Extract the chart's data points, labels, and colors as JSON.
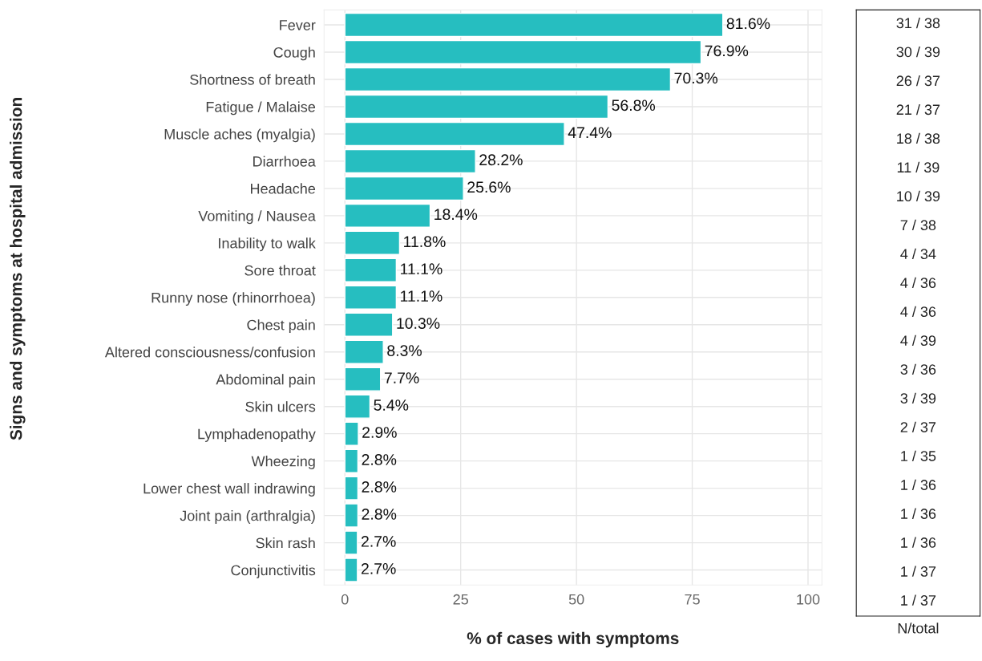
{
  "chart_data": {
    "type": "bar",
    "orientation": "horizontal",
    "xlabel": "% of cases with symptoms",
    "ylabel": "Signs and symptoms at hospital admission",
    "categories": [
      "Fever",
      "Cough",
      "Shortness of breath",
      "Fatigue / Malaise",
      "Muscle aches (myalgia)",
      "Diarrhoea",
      "Headache",
      "Vomiting / Nausea",
      "Inability to walk",
      "Sore throat",
      "Runny nose (rhinorrhoea)",
      "Chest pain",
      "Altered consciousness/confusion",
      "Abdominal pain",
      "Skin ulcers",
      "Lymphadenopathy",
      "Wheezing",
      "Lower chest wall indrawing",
      "Joint pain (arthralgia)",
      "Skin rash",
      "Conjunctivitis"
    ],
    "values": [
      81.6,
      76.9,
      70.3,
      56.8,
      47.4,
      28.2,
      25.6,
      18.4,
      11.8,
      11.1,
      11.1,
      10.3,
      8.3,
      7.7,
      5.4,
      2.9,
      2.8,
      2.8,
      2.8,
      2.7,
      2.7
    ],
    "value_labels": [
      "81.6%",
      "76.9%",
      "70.3%",
      "56.8%",
      "47.4%",
      "28.2%",
      "25.6%",
      "18.4%",
      "11.8%",
      "11.1%",
      "11.1%",
      "10.3%",
      "8.3%",
      "7.7%",
      "5.4%",
      "2.9%",
      "2.8%",
      "2.8%",
      "2.8%",
      "2.7%",
      "2.7%"
    ],
    "color": "#26bec0",
    "xlim": [
      -4.5,
      103
    ],
    "xticks": [
      0,
      25,
      50,
      75,
      100
    ],
    "grid": true,
    "annotations": [
      "N/total",
      "31 / 38",
      "30 / 39",
      "26 / 37",
      "21 / 37",
      "18 / 38",
      "11 / 39",
      "10 / 39",
      "7 / 38",
      "4 / 34",
      "4 / 36",
      "4 / 36",
      "4 / 39",
      "3 / 36",
      "3 / 39",
      "2 / 37",
      "1 / 35",
      "1 / 36",
      "1 / 36",
      "1 / 36",
      "1 / 37",
      "1 / 37"
    ]
  }
}
